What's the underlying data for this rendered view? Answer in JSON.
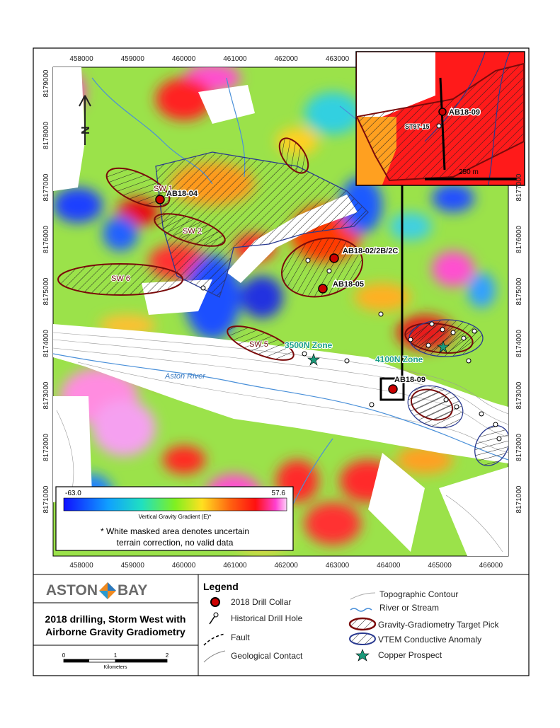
{
  "map": {
    "x_labels_top": [
      458000,
      459000,
      460000,
      461000,
      462000,
      463000
    ],
    "x_labels_bottom": [
      458000,
      459000,
      460000,
      461000,
      462000,
      463000,
      464000,
      465000,
      466000
    ],
    "y_labels_left": [
      8179000,
      8178000,
      8177000,
      8176000,
      8175000,
      8174000,
      8173000,
      8172000,
      8171000
    ],
    "y_labels_right": [
      8177000,
      8176000,
      8175000,
      8174000,
      8173000,
      8172000,
      8171000
    ],
    "north": "N",
    "targets": [
      "SW 1",
      "SW 2",
      "SW 6",
      "SW 5"
    ],
    "drill_collars": [
      "AB18-04",
      "AB18-02/2B/2C",
      "AB18-05",
      "AB18-09"
    ],
    "zones": [
      "3500N Zone",
      "4100N Zone"
    ],
    "river": "Aston River",
    "inset": {
      "collar": "AB18-09",
      "historical": "ST97-15",
      "scale": "250 m"
    },
    "colorbar": {
      "min": "-63.0",
      "max": "57.6",
      "title": "Vertical Gravity Gradient (E)*",
      "note": [
        "* White masked area denotes uncertain",
        "terrain correction, no valid data"
      ]
    }
  },
  "logo": [
    "ASTON",
    "BAY"
  ],
  "title": [
    "2018 drilling, Storm West with",
    "Airborne Gravity Gradiometry"
  ],
  "scale_bar": {
    "ticks": [
      "0",
      "1",
      "2"
    ],
    "unit": "Kilometers"
  },
  "legend": {
    "title": "Legend",
    "items": [
      "2018 Drill Collar",
      "Historical Drill Hole",
      "Fault",
      "Geological Contact",
      "Topographic Contour",
      "River or Stream",
      "Gravity-Gradiometry Target Pick",
      "VTEM Conductive Anomaly",
      "Copper Prospect"
    ]
  }
}
